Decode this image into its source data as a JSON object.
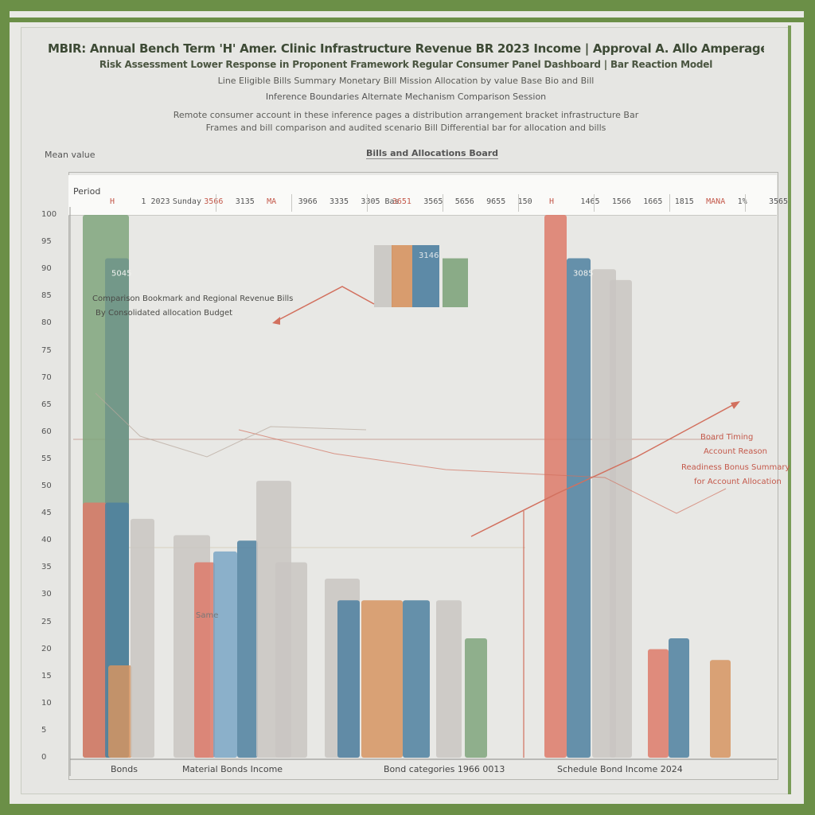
{
  "header": {
    "title": "MBIR: Annual Bench Term 'H' Amer. Clinic Infrastructure Revenue BR 2023 Income | Approval A. Allo Amperage Outcome PR",
    "subtitle_1": "Risk Assessment Lower Response in Proponent Framework Regular Consumer Panel Dashboard | Bar Reaction Model",
    "subtitle_2": "Line Eligible Bills Summary Monetary Bill Mission Allocation by value Base Bio and Bill",
    "subtitle_3": "Inference Boundaries Alternate Mechanism Comparison Session",
    "desc_1": "Remote consumer account in these inference pages a distribution arrangement bracket infrastructure Bar",
    "desc_2": "Frames and bill comparison and audited scenario Bill Differential bar for allocation and bills",
    "chart_caption": "Bills and Allocations Board",
    "y_top_label": "Mean value"
  },
  "table_strip": {
    "title": "Period",
    "cells": [
      {
        "text": "H",
        "color": "#c4594b"
      },
      {
        "text": "1 2023",
        "color": "#555555"
      },
      {
        "text": "Sunday",
        "color": "#555555"
      },
      {
        "text": "3566",
        "color": "#c4594b"
      },
      {
        "text": "3135",
        "color": "#555555"
      },
      {
        "text": "MA",
        "color": "#c4594b"
      },
      {
        "text": "3966",
        "color": "#555555"
      },
      {
        "text": "3335",
        "color": "#555555"
      },
      {
        "text": "3305 Bas",
        "color": "#555555"
      },
      {
        "text": "3651",
        "color": "#c4594b"
      },
      {
        "text": "3565",
        "color": "#555555"
      },
      {
        "text": "5656",
        "color": "#555555"
      },
      {
        "text": "9655",
        "color": "#555555"
      },
      {
        "text": "150",
        "color": "#555555"
      },
      {
        "text": "H",
        "color": "#c4594b"
      },
      {
        "text": "1465",
        "color": "#555555"
      },
      {
        "text": "1566",
        "color": "#555555"
      },
      {
        "text": "1665",
        "color": "#555555"
      },
      {
        "text": "1815",
        "color": "#555555"
      },
      {
        "text": "MANA",
        "color": "#c4594b"
      },
      {
        "text": "1%",
        "color": "#555555"
      },
      {
        "text": "3565",
        "color": "#555555"
      }
    ]
  },
  "annotations": {
    "left_1": "Comparison Bookmark and Regional Revenue Bills",
    "left_2": "By Consolidated allocation Budget",
    "right_1": "Board Timing",
    "right_2": "Account Reason",
    "right_3": "Readiness Bonus Summary",
    "right_4": "for Account Allocation",
    "inset_label": "3146",
    "small_caption": "Same"
  },
  "colors": {
    "frame": "#6b8f47",
    "red": "#dd7a6a",
    "blue": "#4e80a0",
    "light_blue": "#7aa6c6",
    "green": "#7fa47c",
    "grey": "#c9c6c2",
    "orange": "#d69461",
    "line": "#d2705e"
  },
  "chart_data": {
    "type": "bar",
    "title": "Bills and Allocations Board",
    "ylabel": "Mean value",
    "ylim": [
      0,
      100
    ],
    "y_ticks": [
      100,
      95,
      90,
      85,
      80,
      75,
      70,
      65,
      60,
      55,
      50,
      45,
      40,
      35,
      30,
      25,
      20,
      15,
      10,
      5,
      0
    ],
    "categories": [
      "Bonds",
      "Material Bonds Income",
      "Bond categories 1966 0013",
      "Schedule Bond Income 2024"
    ],
    "groups": [
      {
        "category": "Bonds",
        "bars": [
          {
            "series": "green",
            "value": 100
          },
          {
            "series": "teal",
            "value": 92
          },
          {
            "series": "red",
            "value": 47
          },
          {
            "series": "blue",
            "value": 47
          },
          {
            "series": "orange",
            "value": 17
          },
          {
            "series": "grey",
            "value": 44
          }
        ],
        "data_label": "5045"
      },
      {
        "category": "Material Bonds Income",
        "bars": [
          {
            "series": "grey",
            "value": 41
          },
          {
            "series": "red",
            "value": 36
          },
          {
            "series": "light_blue",
            "value": 38
          },
          {
            "series": "blue",
            "value": 40
          },
          {
            "series": "grey",
            "value": 51
          },
          {
            "series": "grey",
            "value": 36
          }
        ]
      },
      {
        "category": "Bond categories 1966 0013",
        "bars": [
          {
            "series": "grey",
            "value": 33
          },
          {
            "series": "blue",
            "value": 29
          },
          {
            "series": "orange",
            "value": 29
          },
          {
            "series": "blue",
            "value": 29
          },
          {
            "series": "grey",
            "value": 29
          },
          {
            "series": "green",
            "value": 22
          }
        ]
      },
      {
        "category": "Schedule Bond Income 2024",
        "bars": [
          {
            "series": "red",
            "value": 100
          },
          {
            "series": "blue",
            "value": 92
          },
          {
            "series": "grey",
            "value": 90
          },
          {
            "series": "grey",
            "value": 88
          },
          {
            "series": "red",
            "value": 20
          },
          {
            "series": "blue",
            "value": 22
          },
          {
            "series": "orange",
            "value": 18
          }
        ],
        "data_label": "3085"
      }
    ],
    "inset": {
      "type": "bar",
      "values": [
        80,
        80,
        80,
        63
      ],
      "series": [
        "grey",
        "orange",
        "blue",
        "green"
      ]
    },
    "trend_line": {
      "name": "",
      "color": "red"
    },
    "grid": false,
    "legend": "none"
  }
}
